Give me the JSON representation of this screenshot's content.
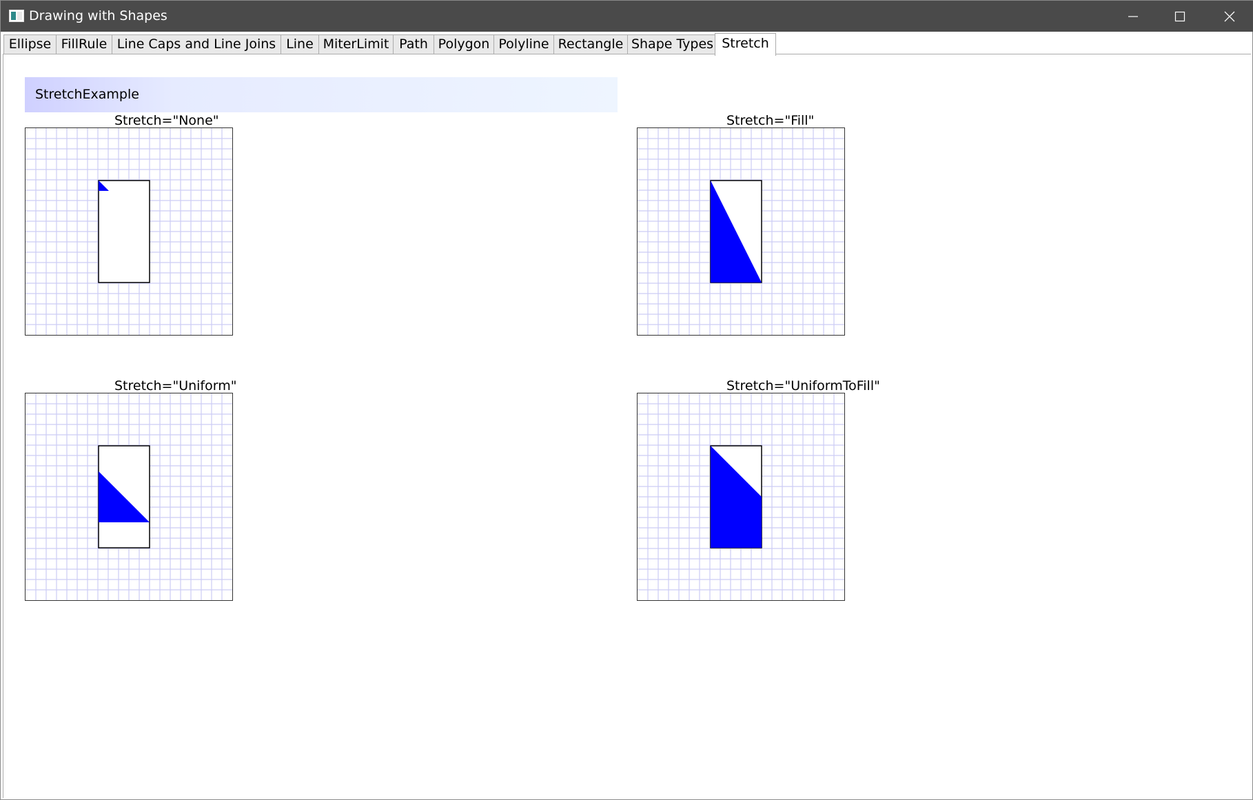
{
  "window": {
    "title": "Drawing with Shapes",
    "controls": [
      "minimize-icon",
      "maximize-icon",
      "close-icon"
    ]
  },
  "tabs": [
    {
      "label": "Ellipse",
      "active": false
    },
    {
      "label": "FillRule",
      "active": false
    },
    {
      "label": "Line Caps and Line Joins",
      "active": false
    },
    {
      "label": "Line",
      "active": false
    },
    {
      "label": "MiterLimit",
      "active": false
    },
    {
      "label": "Path",
      "active": false
    },
    {
      "label": "Polygon",
      "active": false
    },
    {
      "label": "Polyline",
      "active": false
    },
    {
      "label": "Rectangle",
      "active": false
    },
    {
      "label": "Shape Types",
      "active": false
    },
    {
      "label": "Stretch",
      "active": true
    }
  ],
  "content": {
    "header": "StretchExample",
    "examples": [
      {
        "label": "Stretch=\"None\""
      },
      {
        "label": "Stretch=\"Fill\""
      },
      {
        "label": "Stretch=\"Uniform\""
      },
      {
        "label": "Stretch=\"UniformToFill\""
      }
    ]
  },
  "colors": {
    "titlebar": "#4a4a4a",
    "grid_line": "#ccccf5",
    "shape_fill": "#0000ff",
    "shape_stroke": "#000000"
  }
}
